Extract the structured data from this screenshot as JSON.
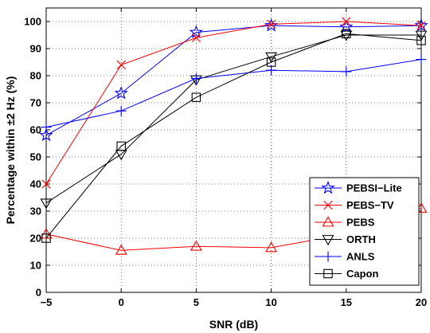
{
  "chart_data": {
    "type": "line",
    "xlabel": "SNR (dB)",
    "ylabel": "Percentage within ±2 Hz (%)",
    "xlim": [
      -5,
      20
    ],
    "ylim": [
      0,
      105
    ],
    "xticks": [
      -5,
      0,
      5,
      10,
      15,
      20
    ],
    "yticks": [
      0,
      10,
      20,
      30,
      40,
      50,
      60,
      70,
      80,
      90,
      100
    ],
    "grid": true,
    "legend_position": "bottom-right",
    "x": [
      -5,
      0,
      5,
      10,
      15,
      20
    ],
    "series": [
      {
        "name": "PEBSI−Lite",
        "color": "#0000ff",
        "marker": "star",
        "values": [
          58,
          73.5,
          96,
          98.5,
          98,
          98.5
        ]
      },
      {
        "name": "PEBS−TV",
        "color": "#ff0000",
        "marker": "x",
        "values": [
          40,
          84,
          94,
          99,
          100,
          98.5
        ]
      },
      {
        "name": "PEBS",
        "color": "#ff0000",
        "marker": "triangle-up",
        "values": [
          21.5,
          15.5,
          17,
          16.5,
          21.5,
          31
        ]
      },
      {
        "name": "ORTH",
        "color": "#000000",
        "marker": "triangle-down",
        "values": [
          33,
          51,
          78.5,
          87,
          95,
          95
        ]
      },
      {
        "name": "ANLS",
        "color": "#0000ff",
        "marker": "plus",
        "values": [
          61,
          67,
          79,
          82,
          81.5,
          86
        ]
      },
      {
        "name": "Capon",
        "color": "#000000",
        "marker": "square",
        "values": [
          20,
          54,
          72,
          85,
          95.5,
          93
        ]
      }
    ]
  }
}
